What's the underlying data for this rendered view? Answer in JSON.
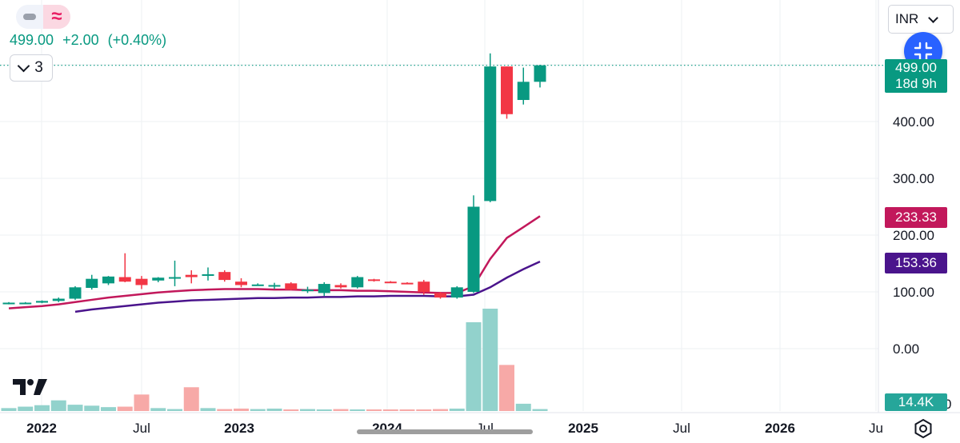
{
  "header": {
    "toggle_icons": [
      "dash-icon",
      "approx-icon"
    ],
    "approx_glyph": "≈",
    "last_price": "499.00",
    "change": "+2.00",
    "change_pct": "(+0.40%)",
    "collapse_count": "3"
  },
  "currency": {
    "selected": "INR"
  },
  "price_axis": {
    "ticks": [
      "400.00",
      "300.00",
      "200.00",
      "100.00",
      "0.00"
    ],
    "last_tag": {
      "value": "499.00",
      "countdown": "18d 9h"
    },
    "ma1_tag": "233.33",
    "ma2_tag": "153.36",
    "volume_tag": "14.4K",
    "partial_tick": "0"
  },
  "time_axis": {
    "labels": [
      {
        "text": "2022",
        "bold": true
      },
      {
        "text": "Jul",
        "bold": false
      },
      {
        "text": "2023",
        "bold": true
      },
      {
        "text": "Jul",
        "bold": false
      },
      {
        "text": "2024",
        "bold": true
      },
      {
        "text": "Jul",
        "bold": false
      },
      {
        "text": "2025",
        "bold": true
      },
      {
        "text": "Jul",
        "bold": false
      },
      {
        "text": "2026",
        "bold": true
      },
      {
        "text": "Ju",
        "bold": false
      }
    ]
  },
  "colors": {
    "up": "#089981",
    "down": "#f23645",
    "vol_up": "#92d2cc",
    "vol_down": "#f7a9a7",
    "ma1": "#c2185b",
    "ma2": "#4a148c",
    "accent": "#2962ff"
  },
  "chart_data": {
    "type": "candlestick",
    "interval": "1M",
    "y_range": [
      0,
      510
    ],
    "last_price": 499.0,
    "candles": [
      {
        "date": "2021-11",
        "o": 80,
        "h": 82,
        "l": 78,
        "c": 81
      },
      {
        "date": "2021-12",
        "o": 80,
        "h": 82,
        "l": 79,
        "c": 81
      },
      {
        "date": "2022-01",
        "o": 81,
        "h": 85,
        "l": 80,
        "c": 84
      },
      {
        "date": "2022-02",
        "o": 84,
        "h": 90,
        "l": 82,
        "c": 88
      },
      {
        "date": "2022-03",
        "o": 88,
        "h": 110,
        "l": 86,
        "c": 108
      },
      {
        "date": "2022-04",
        "o": 107,
        "h": 130,
        "l": 104,
        "c": 123
      },
      {
        "date": "2022-05",
        "o": 115,
        "h": 128,
        "l": 112,
        "c": 127
      },
      {
        "date": "2022-06",
        "o": 126,
        "h": 168,
        "l": 117,
        "c": 118
      },
      {
        "date": "2022-07",
        "o": 123,
        "h": 128,
        "l": 105,
        "c": 112
      },
      {
        "date": "2022-08",
        "o": 120,
        "h": 126,
        "l": 117,
        "c": 125
      },
      {
        "date": "2022-09",
        "o": 125,
        "h": 155,
        "l": 110,
        "c": 126
      },
      {
        "date": "2022-10",
        "o": 130,
        "h": 138,
        "l": 115,
        "c": 126
      },
      {
        "date": "2022-11",
        "o": 130,
        "h": 143,
        "l": 120,
        "c": 131
      },
      {
        "date": "2022-12",
        "o": 135,
        "h": 138,
        "l": 118,
        "c": 121
      },
      {
        "date": "2023-01",
        "o": 118,
        "h": 124,
        "l": 108,
        "c": 112
      },
      {
        "date": "2023-02",
        "o": 112,
        "h": 115,
        "l": 111,
        "c": 113
      },
      {
        "date": "2023-03",
        "o": 110,
        "h": 116,
        "l": 105,
        "c": 112
      },
      {
        "date": "2023-04",
        "o": 115,
        "h": 117,
        "l": 103,
        "c": 104
      },
      {
        "date": "2023-05",
        "o": 104,
        "h": 109,
        "l": 98,
        "c": 104
      },
      {
        "date": "2023-06",
        "o": 98,
        "h": 117,
        "l": 93,
        "c": 114
      },
      {
        "date": "2023-07",
        "o": 112,
        "h": 115,
        "l": 106,
        "c": 108
      },
      {
        "date": "2023-08",
        "o": 108,
        "h": 128,
        "l": 106,
        "c": 126
      },
      {
        "date": "2023-09",
        "o": 122,
        "h": 123,
        "l": 118,
        "c": 120
      },
      {
        "date": "2023-10",
        "o": 118,
        "h": 119,
        "l": 116,
        "c": 117
      },
      {
        "date": "2023-11",
        "o": 116,
        "h": 117,
        "l": 114,
        "c": 115
      },
      {
        "date": "2023-12",
        "o": 118,
        "h": 121,
        "l": 95,
        "c": 100
      },
      {
        "date": "2024-01",
        "o": 98,
        "h": 100,
        "l": 88,
        "c": 90
      },
      {
        "date": "2024-02",
        "o": 90,
        "h": 110,
        "l": 88,
        "c": 108
      },
      {
        "date": "2024-03",
        "o": 100,
        "h": 270,
        "l": 98,
        "c": 250
      },
      {
        "date": "2024-04",
        "o": 260,
        "h": 520,
        "l": 258,
        "c": 497
      },
      {
        "date": "2024-05",
        "o": 497,
        "h": 497,
        "l": 405,
        "c": 413
      },
      {
        "date": "2024-06",
        "o": 438,
        "h": 495,
        "l": 430,
        "c": 470
      },
      {
        "date": "2024-07",
        "o": 470,
        "h": 500,
        "l": 460,
        "c": 499
      }
    ],
    "volume": [
      600,
      900,
      1200,
      2200,
      1300,
      1100,
      800,
      900,
      3400,
      600,
      400,
      4900,
      600,
      400,
      500,
      400,
      500,
      300,
      400,
      300,
      400,
      300,
      200,
      300,
      300,
      300,
      400,
      500,
      18300,
      21100,
      9500,
      1500,
      400
    ],
    "ma_series": [
      {
        "label": "233.33",
        "values": [
          71,
          73,
          75,
          78,
          82,
          86,
          90,
          93,
          96,
          99,
          101,
          103,
          104,
          105,
          105,
          105,
          104,
          104,
          103,
          103,
          103,
          102,
          102,
          101,
          100,
          99,
          98,
          98,
          110,
          158,
          195,
          214,
          233.33
        ]
      },
      {
        "label": "153.36",
        "values": [
          null,
          null,
          null,
          null,
          65,
          69,
          72,
          75,
          78,
          81,
          83,
          85,
          86,
          87,
          88,
          89,
          89,
          90,
          90,
          91,
          91,
          92,
          92,
          93,
          93,
          93,
          92,
          92,
          95,
          108,
          125,
          140,
          153.36
        ]
      }
    ]
  }
}
